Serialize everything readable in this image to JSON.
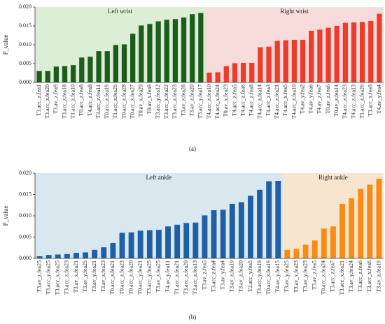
{
  "chart_data": [
    {
      "type": "bar",
      "ylabel": "P_value",
      "caption": "(a)",
      "ylim": [
        0,
        0.02
      ],
      "yticks": [
        {
          "value": 0,
          "label": "0.000"
        },
        {
          "value": 0.005,
          "label": "0.005"
        },
        {
          "value": 0.01,
          "label": "0.010"
        },
        {
          "value": 0.015,
          "label": "0.015"
        },
        {
          "value": 0.02,
          "label": "0.020"
        }
      ],
      "series": [
        {
          "name": "Left wrist",
          "color": "#1e5c1e",
          "band_color": "#dcefd6",
          "categories": [
            "T3.acc_z.fea1",
            "T3.acc_z.fea20",
            "T3.av_z.fea9",
            "T3.acc_z.fea18",
            "T1.acc_z.fea10",
            "T0.acc_z.fea8",
            "T4.acc_z.fea8",
            "T3.acc_z.fea11",
            "T0.acc_z.fea19",
            "T1.acc_z.fea26",
            "T0.acc_z.fea28",
            "T0.acc_z.fea27",
            "T0.av_x.fea29",
            "T0.av_x.fea9",
            "T3.acc_y.fea12",
            "T3.acc_z.fea22",
            "T3.acc_z.fea23",
            "T3.av_z.fea28",
            "T3.av_z.fea20",
            "T3.acc_y.fea17"
          ],
          "values": [
            0.003,
            0.003,
            0.0042,
            0.0043,
            0.0046,
            0.0066,
            0.0068,
            0.0083,
            0.0083,
            0.0099,
            0.0101,
            0.0129,
            0.0151,
            0.0155,
            0.0162,
            0.0166,
            0.0168,
            0.0172,
            0.0181,
            0.0184
          ]
        },
        {
          "name": "Right wrist",
          "color": "#ee3b2c",
          "band_color": "#f8dcdc",
          "categories": [
            "T4.acc_z.fea10",
            "T4.acc_x.fea24",
            "T0.av_x.fea23",
            "T4.acc_z.fea5",
            "T4.acc_z.fea6",
            "T4.acc_z.fea8",
            "T4.acc_z.fea14",
            "T4.acc_z.fea3",
            "T4.acc_z.fea21",
            "T4.acc_x.fea5",
            "T4.acc_z.fea10",
            "T4.av_y.fea2",
            "T4.av_y.fea6",
            "T4.av_z.fea7",
            "T0.av_z.fea6",
            "T0.av_z.fea14",
            "T4.acc_z.fea23",
            "T4.acc_z.fea13",
            "T1.acc_z.fea26",
            "T3.acc_x.fea9",
            "T4.av_y.fea4"
          ],
          "values": [
            0.0026,
            0.0027,
            0.0043,
            0.0051,
            0.0052,
            0.0052,
            0.0093,
            0.0095,
            0.011,
            0.0112,
            0.0113,
            0.0113,
            0.0137,
            0.014,
            0.0145,
            0.015,
            0.0158,
            0.0159,
            0.016,
            0.0163,
            0.0182
          ]
        }
      ]
    },
    {
      "type": "bar",
      "ylabel": "P_value",
      "caption": "(b)",
      "ylim": [
        0,
        0.02
      ],
      "yticks": [
        {
          "value": 0,
          "label": "0.000"
        },
        {
          "value": 0.005,
          "label": "0.005"
        },
        {
          "value": 0.01,
          "label": "0.010"
        },
        {
          "value": 0.015,
          "label": "0.015"
        },
        {
          "value": 0.02,
          "label": "0.020"
        }
      ],
      "series": [
        {
          "name": "Left ankle",
          "color": "#1f5fa6",
          "band_color": "#d9e7ee",
          "categories": [
            "T3.av_z.fea25",
            "T3.acc_y.fea25",
            "T3.acc_x.fea25",
            "T3.acc_z.fea23",
            "T3.av_x.fea21",
            "T3.av_y.fea25",
            "T3.av_y.fea21",
            "T3.av_z.fea23",
            "T0.acc_z.fea21",
            "T0.acc_z.fea23",
            "T0.acc_z.fea20",
            "T0.acc_y.fea21",
            "T3.acc_y.fea25",
            "T3.av_z.fea25",
            "T4.av_y.fea11",
            "T1.acc_z.fea21",
            "T3.acc_z.fea20",
            "T3.acc_z.fea13",
            "T3.av_z.fea5",
            "T3.acc_z.fea4",
            "T3.av_y.fea4",
            "T3.av_z.fea19",
            "T3.av_z.fea20",
            "T2.acc_y.fea5",
            "T3.acc_y.fea19",
            "T0.acc_z.fea19",
            "T4.av_y.fea15"
          ],
          "values": [
            0.0005,
            0.0008,
            0.0009,
            0.001,
            0.0013,
            0.0014,
            0.002,
            0.0026,
            0.0036,
            0.006,
            0.0061,
            0.0065,
            0.0066,
            0.0067,
            0.0075,
            0.0079,
            0.0083,
            0.0084,
            0.0101,
            0.0113,
            0.0114,
            0.0128,
            0.0132,
            0.0147,
            0.0161,
            0.0181,
            0.0182
          ]
        },
        {
          "name": "Right ankle",
          "color": "#f98a12",
          "band_color": "#f7e5cf",
          "categories": [
            "T3.av_y.fea25",
            "T3.av_x.fea23",
            "T3.av_y.fea23",
            "T3.av_z.fea5",
            "T0.acc_z.fea24",
            "T3.acc_z.fea7",
            "T3.acc_x.fea21",
            "T3.av_y.fea24",
            "T3.acc_z.fea6",
            "T3.acc_x.fea6",
            "T3.av_z.fea19"
          ],
          "values": [
            0.002,
            0.0022,
            0.0032,
            0.0042,
            0.007,
            0.0075,
            0.0128,
            0.0141,
            0.0163,
            0.0173,
            0.0187
          ]
        }
      ]
    }
  ]
}
